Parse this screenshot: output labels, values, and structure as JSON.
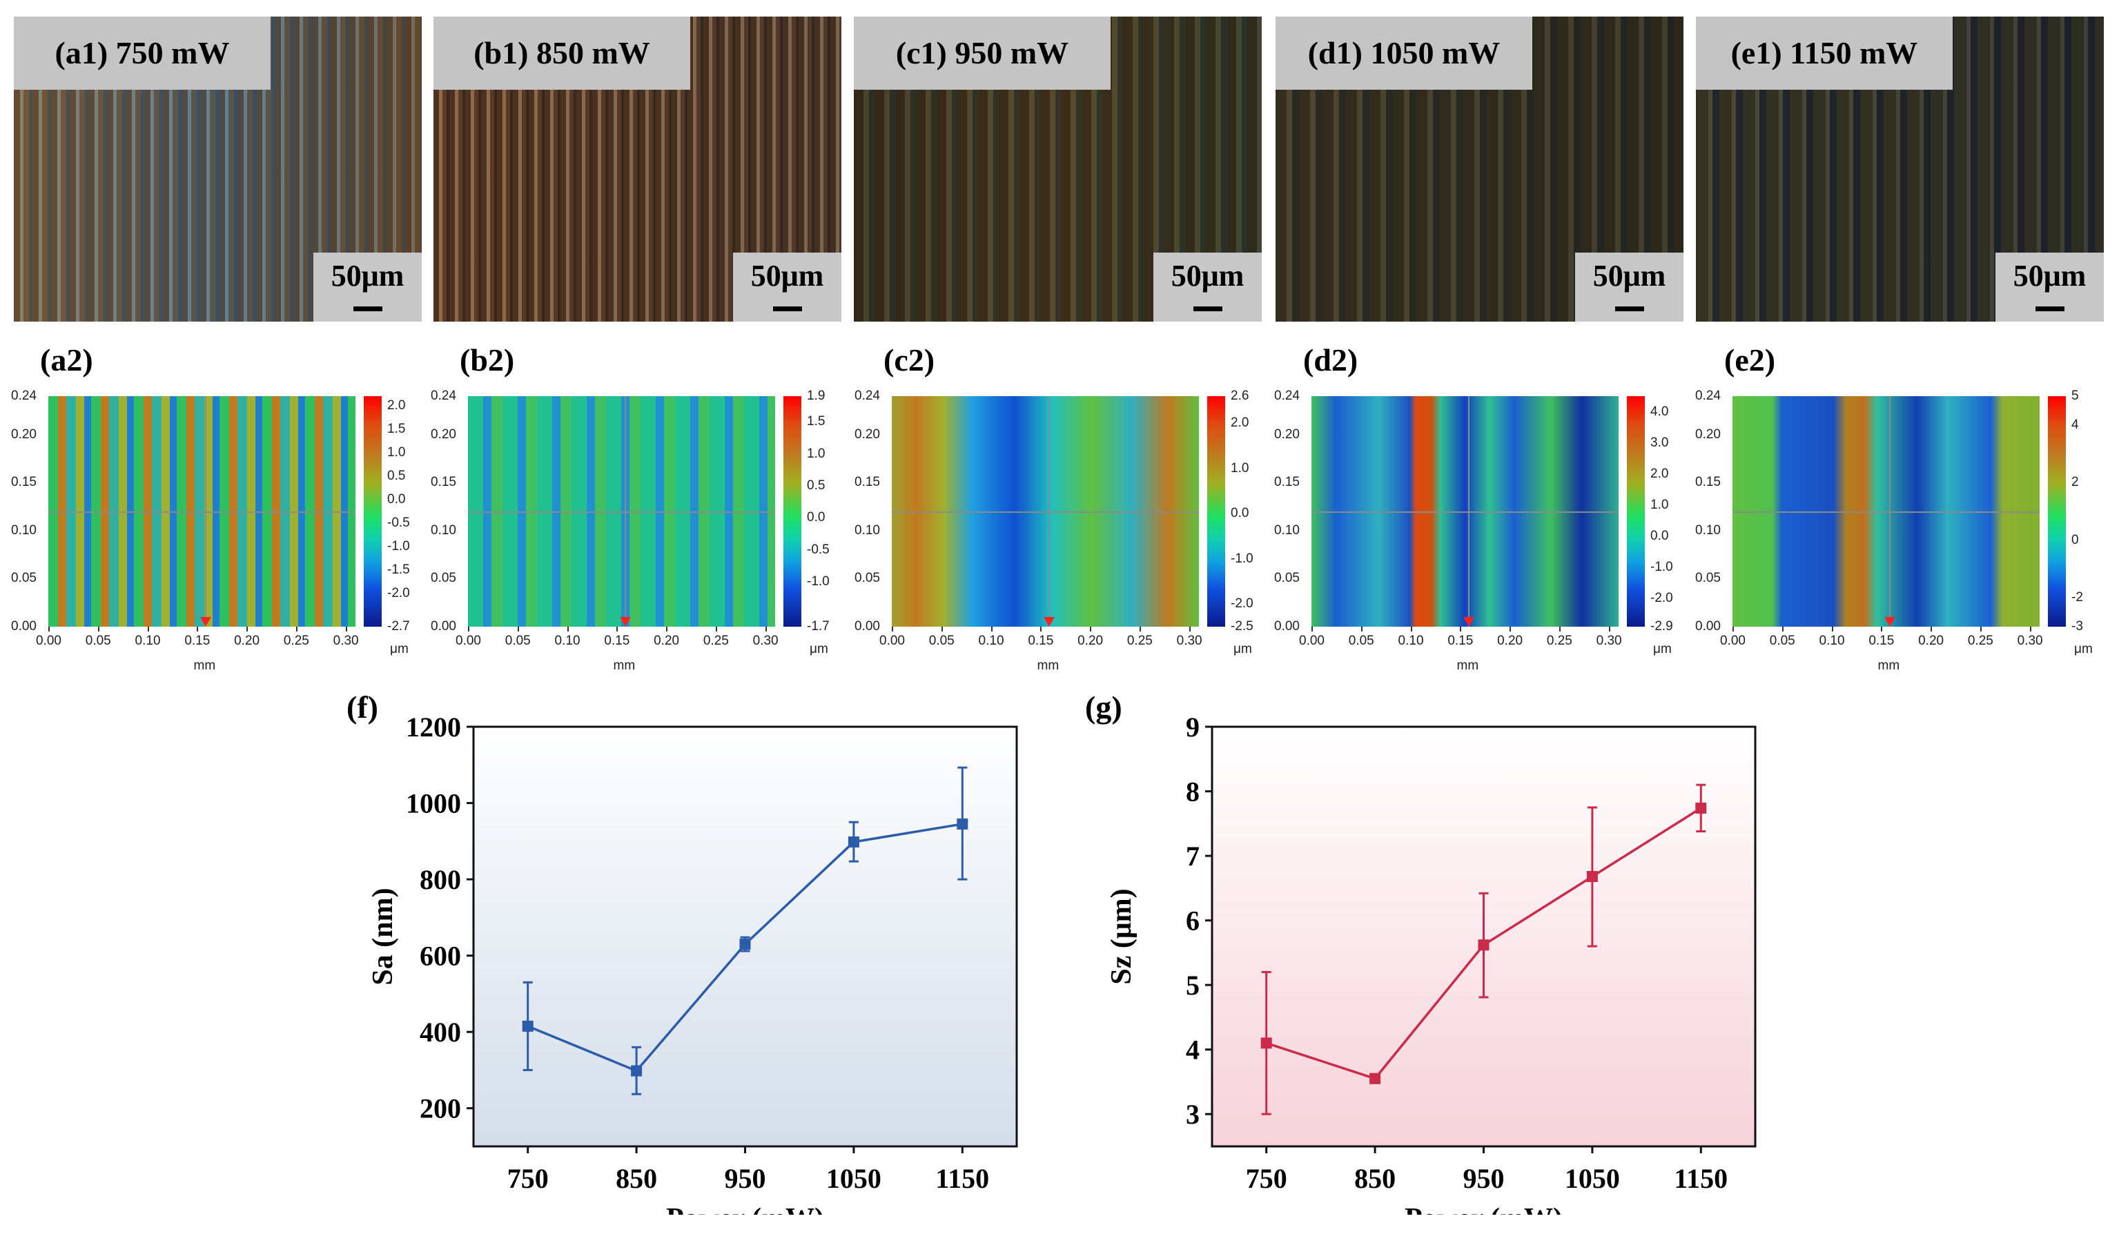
{
  "micrographs": [
    {
      "label": "(a1) 750 mW",
      "scale": "50μm"
    },
    {
      "label": "(b1) 850 mW",
      "scale": "50μm"
    },
    {
      "label": "(c1) 950 mW",
      "scale": "50μm"
    },
    {
      "label": "(d1) 1050 mW",
      "scale": "50μm"
    },
    {
      "label": "(e1) 1150 mW",
      "scale": "50μm"
    }
  ],
  "heatmaps": [
    {
      "label": "(a2)",
      "cbar_range": [
        -2.7,
        2.2
      ],
      "cbar_ticks": [
        "2.0",
        "1.5",
        "1.0",
        "0.5",
        "0.0",
        "-0.5",
        "-1.0",
        "-1.5",
        "-2.0",
        "-2.7"
      ]
    },
    {
      "label": "(b2)",
      "cbar_range": [
        -1.7,
        1.9
      ],
      "cbar_ticks": [
        "1.9",
        "1.5",
        "1.0",
        "0.5",
        "0.0",
        "-0.5",
        "-1.0",
        "-1.7"
      ]
    },
    {
      "label": "(c2)",
      "cbar_range": [
        -2.5,
        2.6
      ],
      "cbar_ticks": [
        "2.6",
        "2.0",
        "1.0",
        "0.0",
        "-1.0",
        "-2.0",
        "-2.5"
      ]
    },
    {
      "label": "(d2)",
      "cbar_range": [
        -2.9,
        4.5
      ],
      "cbar_ticks": [
        "4.0",
        "3.0",
        "2.0",
        "1.0",
        "0.0",
        "-1.0",
        "-2.0",
        "-2.9"
      ]
    },
    {
      "label": "(e2)",
      "cbar_range": [
        -3,
        5
      ],
      "cbar_ticks": [
        "5",
        "4",
        "2",
        "0",
        "-2",
        "-3"
      ]
    }
  ],
  "heatmap_axes": {
    "x_ticks": [
      "0.00",
      "0.05",
      "0.10",
      "0.15",
      "0.20",
      "0.25",
      "0.30"
    ],
    "y_ticks": [
      "0.00",
      "0.05",
      "0.10",
      "0.15",
      "0.20",
      "0.24"
    ],
    "x_unit": "mm",
    "cbar_unit": "μm"
  },
  "chart_data": [
    {
      "type": "line",
      "label": "(f)",
      "title": "",
      "xlabel": "Power (mW)",
      "ylabel": "Sa (nm)",
      "x": [
        750,
        850,
        950,
        1050,
        1150
      ],
      "xticks": [
        "750",
        "850",
        "950",
        "1050",
        "1150"
      ],
      "yticks": [
        "200",
        "400",
        "600",
        "800",
        "1000",
        "1200"
      ],
      "xlim": [
        700,
        1200
      ],
      "ylim": [
        100,
        1200
      ],
      "series": [
        {
          "name": "Sa",
          "values": [
            415,
            298,
            630,
            898,
            945
          ],
          "err_upper": [
            530,
            360,
            648,
            950,
            1093
          ],
          "err_lower": [
            300,
            237,
            612,
            847,
            800
          ]
        }
      ],
      "color": "#2a5caa",
      "bg": [
        "#ffffff",
        "#d3ddea"
      ],
      "grid": false
    },
    {
      "type": "line",
      "label": "(g)",
      "title": "",
      "xlabel": "Power (mW)",
      "ylabel": "Sz (μm)",
      "x": [
        750,
        850,
        950,
        1050,
        1150
      ],
      "xticks": [
        "750",
        "850",
        "950",
        "1050",
        "1150"
      ],
      "yticks": [
        "3",
        "4",
        "5",
        "6",
        "7",
        "8",
        "9"
      ],
      "xlim": [
        700,
        1200
      ],
      "ylim": [
        2.5,
        9
      ],
      "series": [
        {
          "name": "Sz",
          "values": [
            4.1,
            3.55,
            5.62,
            6.68,
            7.74
          ],
          "err_upper": [
            5.2,
            3.6,
            6.42,
            7.75,
            8.1
          ],
          "err_lower": [
            3.0,
            3.5,
            4.81,
            5.6,
            7.38
          ]
        }
      ],
      "color": "#cc2a4a",
      "bg": [
        "#ffffff",
        "#f6d3da"
      ],
      "grid": false
    }
  ]
}
